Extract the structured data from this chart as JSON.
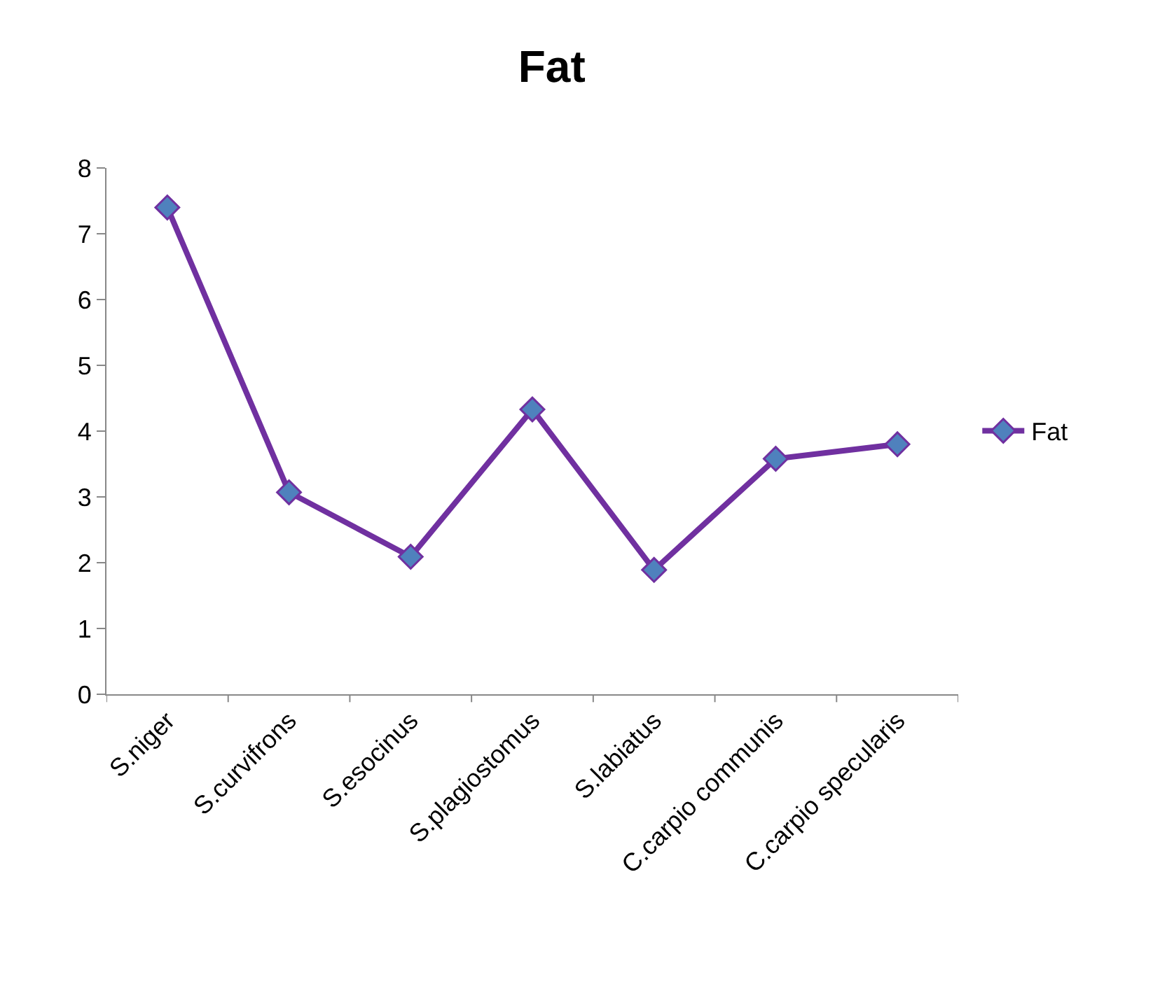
{
  "chart_data": {
    "type": "line",
    "title": "Fat",
    "categories": [
      "S.niger",
      "S.curvifrons",
      "S.esocinus",
      "S.plagiostomus",
      "S.labiatus",
      "C.carpio communis",
      "C.carpio specularis"
    ],
    "series": [
      {
        "name": "Fat",
        "color": "#7030a0",
        "values": [
          7.4,
          3.07,
          2.09,
          4.33,
          1.89,
          3.58,
          3.8
        ]
      }
    ],
    "ylim": [
      0,
      8
    ],
    "yticks": [
      0,
      1,
      2,
      3,
      4,
      5,
      6,
      7,
      8
    ],
    "legend": "right",
    "marker": "diamond",
    "line_style": "solid"
  }
}
